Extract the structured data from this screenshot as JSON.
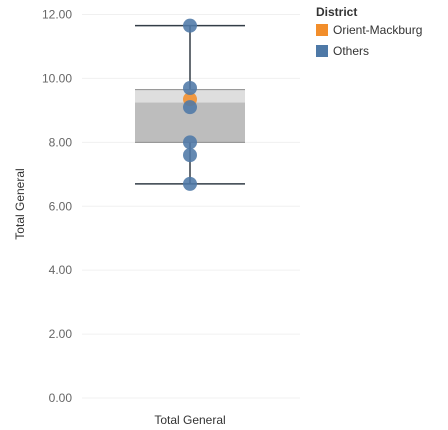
{
  "chart_data": {
    "type": "box",
    "ylabel": "Total General",
    "xlabel": "Total General",
    "ylim": [
      0,
      12
    ],
    "yticks": [
      "0.00",
      "2.00",
      "4.00",
      "6.00",
      "8.00",
      "10.00",
      "12.00"
    ],
    "grid": true,
    "box": {
      "whisker_low": 6.7,
      "q1": 8.0,
      "median": 9.25,
      "q3": 9.65,
      "whisker_high": 11.65
    },
    "legend": {
      "title": "District",
      "position": "top-right",
      "entries": [
        {
          "label": "Orient-Mackburg",
          "color": "#f28e2b"
        },
        {
          "label": "Others",
          "color": "#4e79a7"
        }
      ]
    },
    "series": [
      {
        "name": "Orient-Mackburg",
        "color": "#f28e2b",
        "values": [
          9.35
        ]
      },
      {
        "name": "Others",
        "color": "#4e79a7",
        "values": [
          11.65,
          9.7,
          9.1,
          8.0,
          7.6,
          6.7
        ]
      }
    ]
  }
}
